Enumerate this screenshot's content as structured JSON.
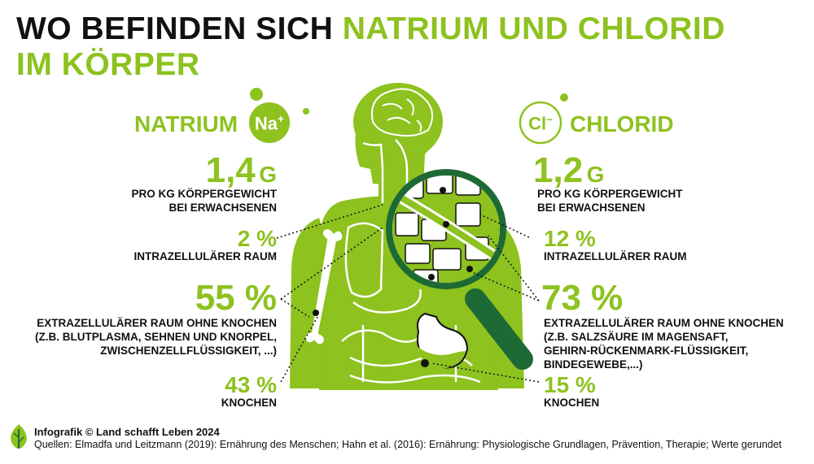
{
  "title": {
    "part1": "WO BEFINDEN SICH",
    "part2": "NATRIUM UND CHLORID",
    "part3": "IM KÖRPER"
  },
  "natrium": {
    "heading": "NATRIUM",
    "symbol": "Na",
    "charge": "+",
    "amount": "1,4",
    "unit": "G",
    "amount_label_line1": "PRO KG KÖRPERGEWICHT",
    "amount_label_line2": "BEI ERWACHSENEN",
    "intra_pct": "2 %",
    "intra_label": "INTRAZELLULÄRER RAUM",
    "extra_pct": "55 %",
    "extra_line1": "EXTRAZELLULÄRER RAUM OHNE KNOCHEN",
    "extra_line2": "(Z.B. BLUTPLASMA, SEHNEN UND KNORPEL,",
    "extra_line3": "ZWISCHENZELLFLÜSSIGKEIT, ...)",
    "bone_pct": "43 %",
    "bone_label": "KNOCHEN"
  },
  "chlorid": {
    "heading": "CHLORID",
    "symbol": "Cl",
    "charge": "–",
    "amount": "1,2",
    "unit": "G",
    "amount_label_line1": "PRO KG KÖRPERGEWICHT",
    "amount_label_line2": "BEI ERWACHSENEN",
    "intra_pct": "12 %",
    "intra_label": "INTRAZELLULÄRER RAUM",
    "extra_pct": "73 %",
    "extra_line1": "EXTRAZELLULÄRER RAUM OHNE KNOCHEN",
    "extra_line2": "(Z.B. SALZSÄURE IM MAGENSAFT,",
    "extra_line3": "GEHIRN-RÜCKENMARK-FLÜSSIGKEIT,",
    "extra_line4": "BINDEGEWEBE,...)",
    "bone_pct": "15 %",
    "bone_label": "KNOCHEN"
  },
  "footer": {
    "credit": "Infografik © Land schafft Leben 2024",
    "sources": "Quellen: Elmadfa und Leitzmann (2019): Ernährung des Menschen; Hahn et al. (2016): Ernährung: Physiologische Grundlagen, Prävention, Therapie; Werte gerundet"
  },
  "colors": {
    "green": "#8dc21f",
    "dark_green": "#1e6a35",
    "text": "#111111"
  },
  "icons": [
    "body-silhouette-icon",
    "brain-icon",
    "magnifier-icon",
    "bone-icon",
    "stomach-icon",
    "leaf-logo-icon"
  ]
}
